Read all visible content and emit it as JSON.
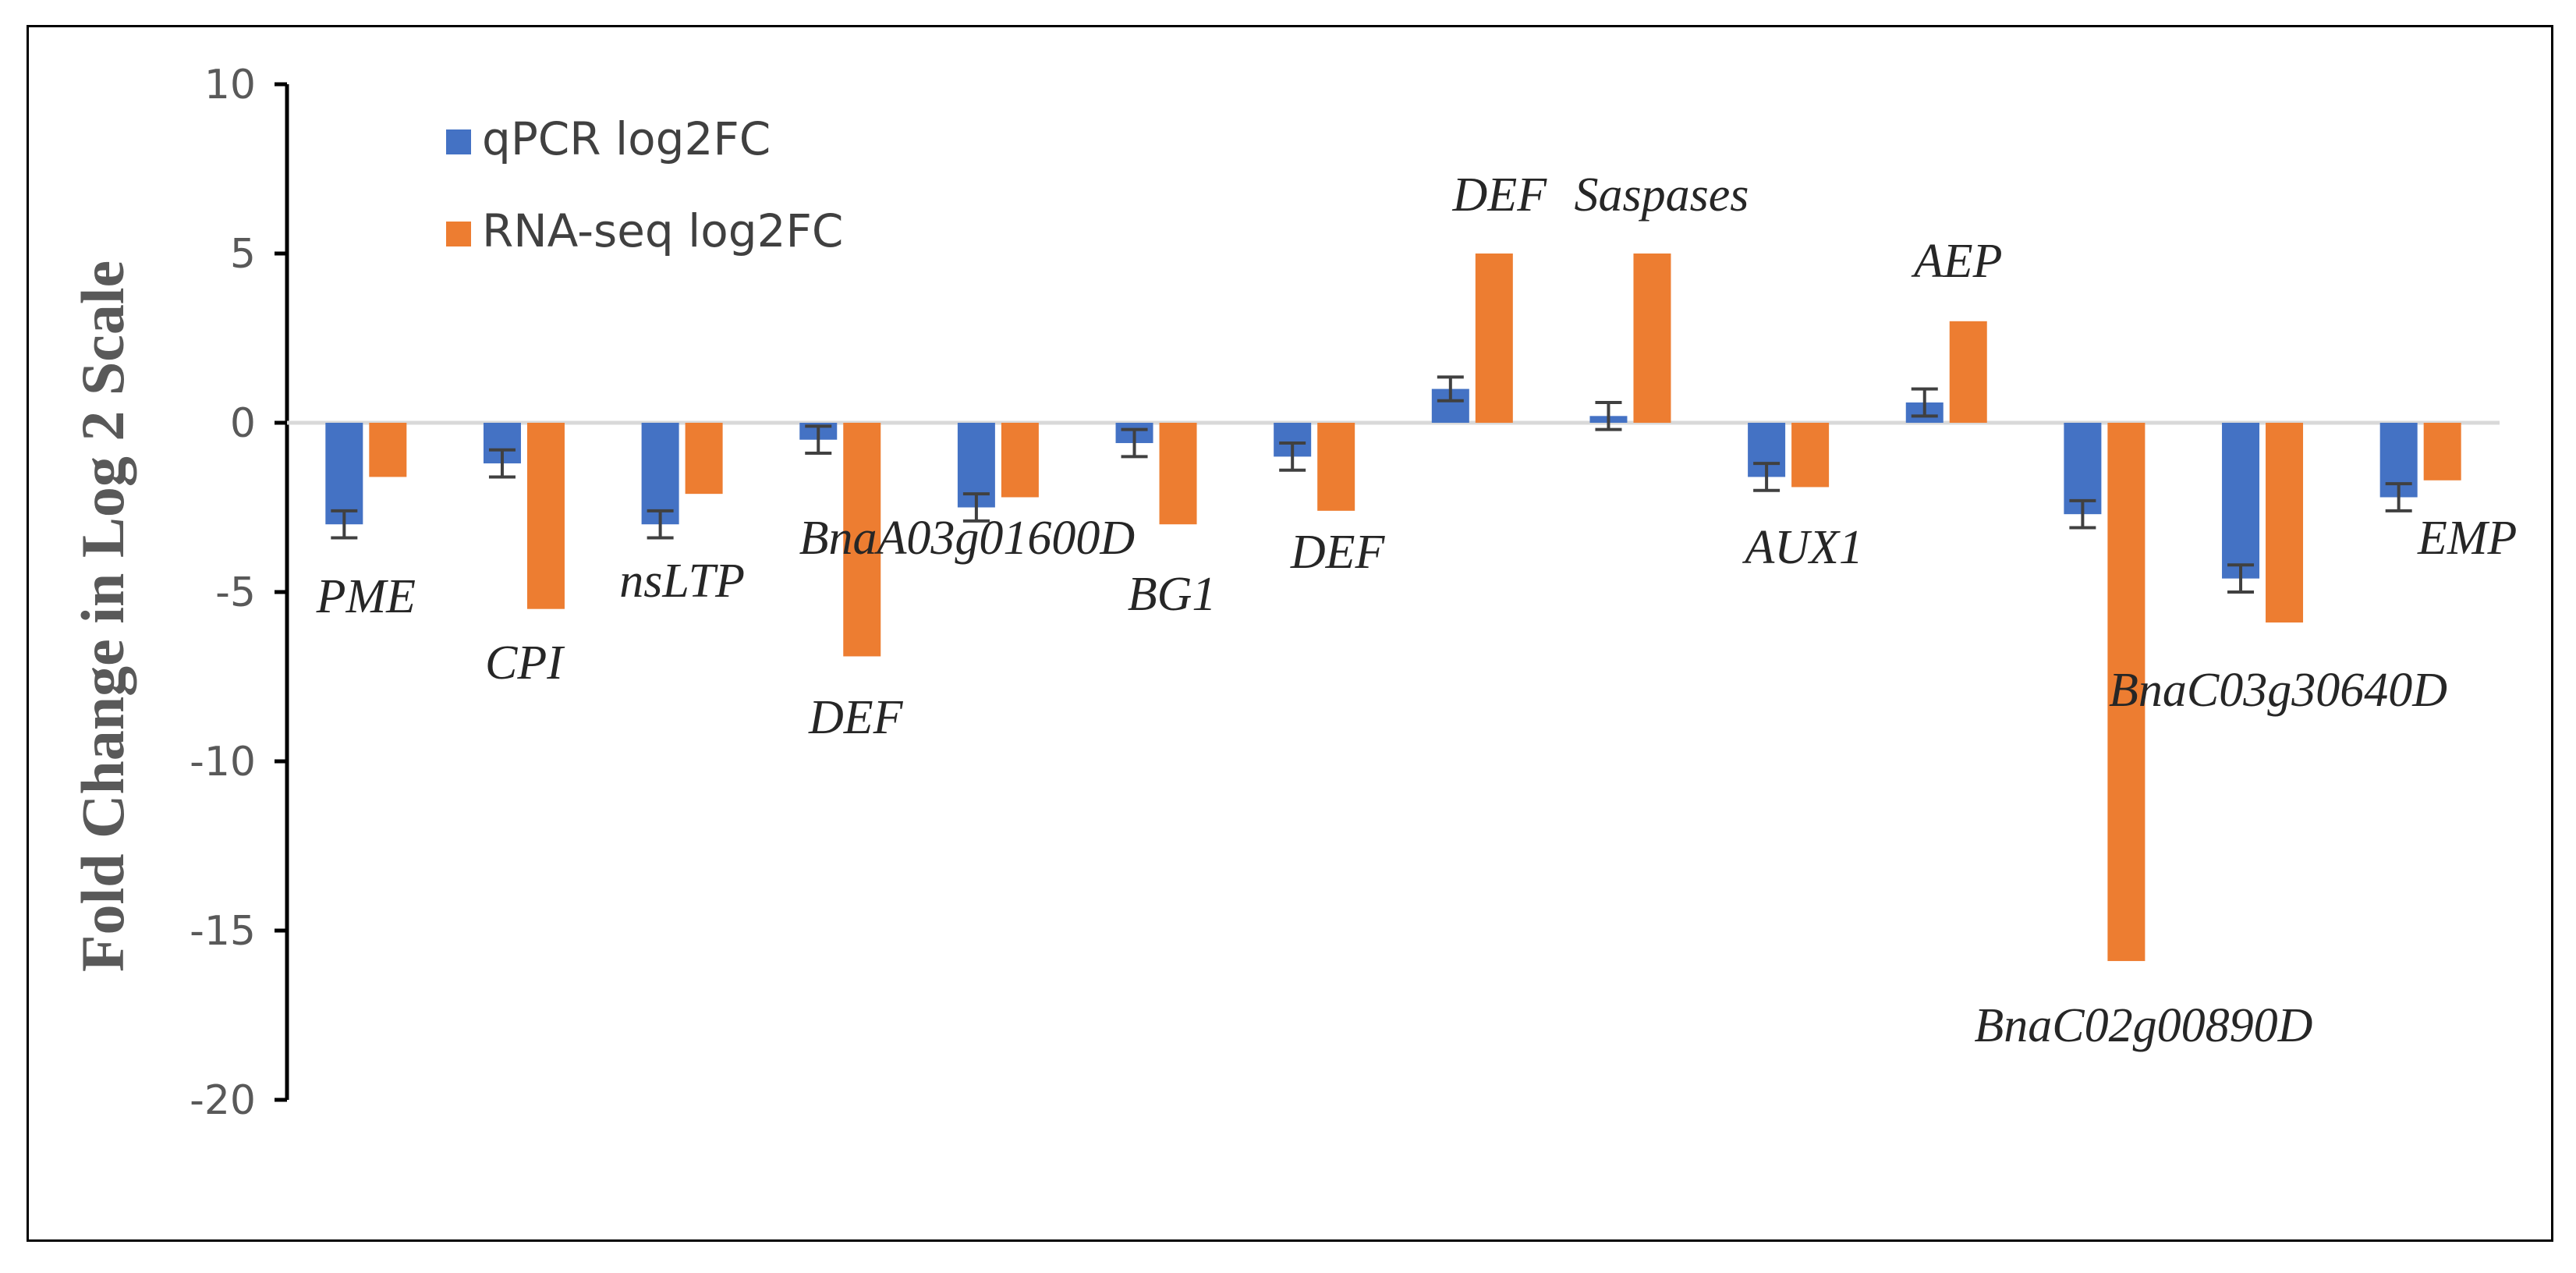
{
  "chart_data": {
    "type": "bar",
    "ylabel": "Fold Change in Log 2 Scale",
    "ylim": [
      -20,
      10
    ],
    "yticks": [
      10,
      5,
      0,
      -5,
      -10,
      -15,
      -20
    ],
    "grid": false,
    "legend_position": "top-left",
    "categories": [
      "PME",
      "CPI",
      "nsLTP",
      "DEF",
      "BnaA03g01600D",
      "BG1",
      "DEF",
      "DEF",
      "Saspases",
      "AUX1",
      "AEP",
      "BnaC02g00890D",
      "BnaC03g30640D",
      "EMP"
    ],
    "series": [
      {
        "name": "qPCR log2FC",
        "color": "#4472C4",
        "values": [
          -3.0,
          -1.2,
          -3.0,
          -0.5,
          -2.5,
          -0.6,
          -1.0,
          1.0,
          0.2,
          -1.6,
          0.6,
          -2.7,
          -4.6,
          -2.2
        ],
        "errors": [
          0.4,
          0.4,
          0.4,
          0.4,
          0.4,
          0.4,
          0.4,
          0.35,
          0.4,
          0.4,
          0.4,
          0.4,
          0.4,
          0.4
        ]
      },
      {
        "name": "RNA-seq log2FC",
        "color": "#ED7D31",
        "values": [
          -1.6,
          -5.5,
          -2.1,
          -6.9,
          -2.2,
          -3.0,
          -2.6,
          5.0,
          5.0,
          -1.9,
          3.0,
          -15.9,
          -5.9,
          -1.7
        ]
      }
    ]
  }
}
